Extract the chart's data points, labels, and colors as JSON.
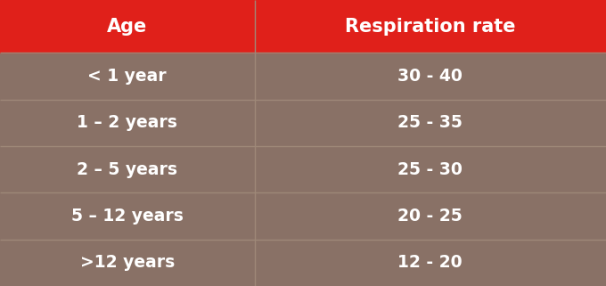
{
  "header": [
    "Age",
    "Respiration rate"
  ],
  "rows": [
    [
      "< 1 year",
      "30 - 40"
    ],
    [
      "1 – 2 years",
      "25 - 35"
    ],
    [
      "2 – 5 years",
      "25 - 30"
    ],
    [
      "5 – 12 years",
      "20 - 25"
    ],
    [
      ">12 years",
      "12 - 20"
    ]
  ],
  "header_bg": "#E0201A",
  "row_bg": "#897166",
  "divider_color": "#9E8878",
  "header_text_color": "#FFFFFF",
  "row_text_color": "#FFFFFF",
  "fig_bg": "#897166",
  "col_split": 0.42,
  "header_fontsize": 15,
  "row_fontsize": 13.5
}
